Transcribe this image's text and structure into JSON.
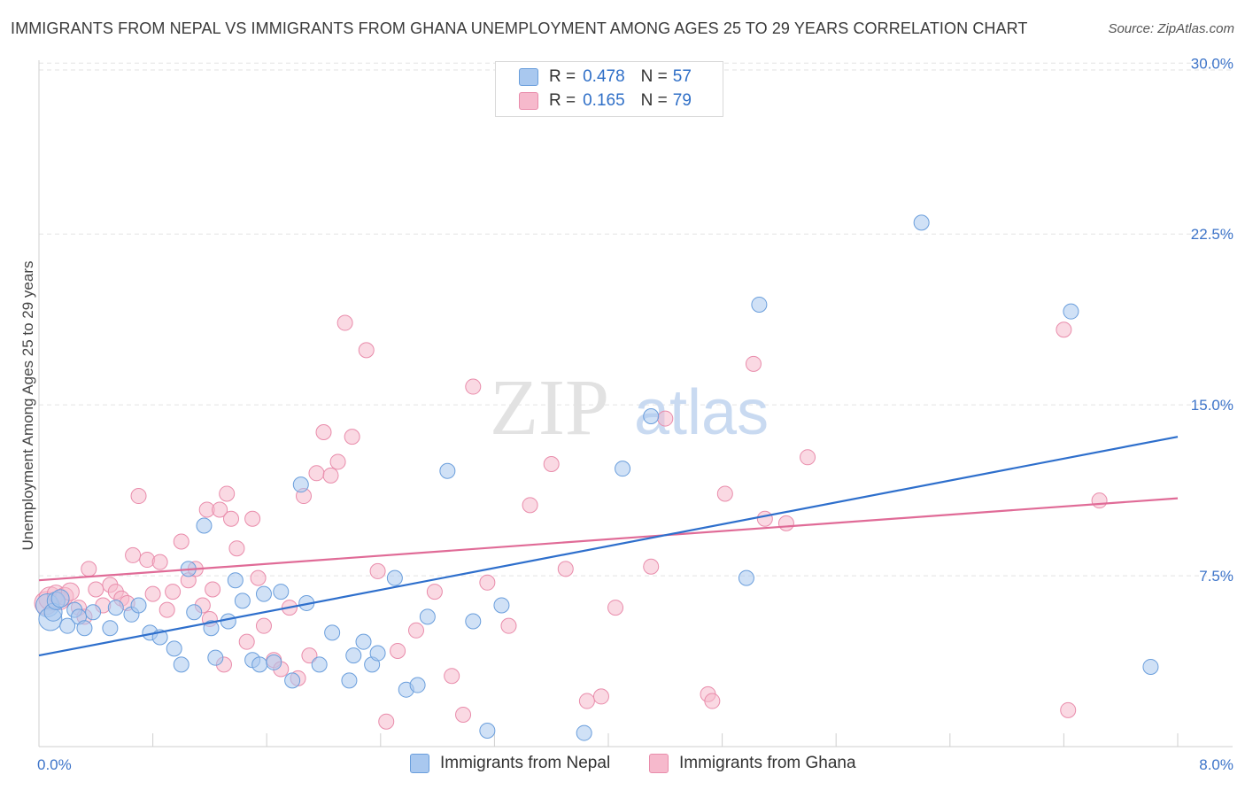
{
  "header": {
    "title": "IMMIGRANTS FROM NEPAL VS IMMIGRANTS FROM GHANA UNEMPLOYMENT AMONG AGES 25 TO 29 YEARS CORRELATION CHART",
    "source": "Source: ZipAtlas.com"
  },
  "watermark": {
    "zip": "ZIP",
    "atlas": "atlas"
  },
  "legend": {
    "rows": [
      {
        "r_label": "R =",
        "r_value": "0.478",
        "n_label": "N =",
        "n_value": "57"
      },
      {
        "r_label": "R =",
        "r_value": "0.165",
        "n_label": "N =",
        "n_value": "79"
      }
    ]
  },
  "colors": {
    "nepal_fill": "#a9c8ef",
    "nepal_stroke": "#6a9edc",
    "nepal_line": "#2e6fcc",
    "ghana_fill": "#f6b9cc",
    "ghana_stroke": "#e98cab",
    "ghana_line": "#e06b97",
    "tick_label": "#3d74c9",
    "grid": "#e3e3e3"
  },
  "chart_data": {
    "type": "scatter",
    "title": "IMMIGRANTS FROM NEPAL VS IMMIGRANTS FROM GHANA UNEMPLOYMENT AMONG AGES 25 TO 29 YEARS CORRELATION CHART",
    "xlabel": "",
    "ylabel": "Unemployment Among Ages 25 to 29 years",
    "xlim": [
      0,
      8
    ],
    "ylim": [
      0,
      30
    ],
    "x_tick_labels": [
      "0.0%",
      "8.0%"
    ],
    "y_ticks": [
      7.5,
      15.0,
      22.5,
      30.0
    ],
    "y_tick_labels": [
      "7.5%",
      "15.0%",
      "22.5%",
      "30.0%"
    ],
    "grid": "horizontal dashed",
    "legend_position": "top-center",
    "series": [
      {
        "name": "Immigrants from Nepal",
        "r": 0.478,
        "n": 57,
        "trend": [
          [
            0,
            4.0
          ],
          [
            8,
            13.6
          ]
        ],
        "points": [
          [
            0.06,
            6.2
          ],
          [
            0.08,
            5.6
          ],
          [
            0.1,
            5.9
          ],
          [
            0.12,
            6.4
          ],
          [
            0.15,
            6.5
          ],
          [
            0.2,
            5.3
          ],
          [
            0.25,
            6.0
          ],
          [
            0.28,
            5.7
          ],
          [
            0.32,
            5.2
          ],
          [
            0.38,
            5.9
          ],
          [
            0.5,
            5.2
          ],
          [
            0.54,
            6.1
          ],
          [
            0.65,
            5.8
          ],
          [
            0.7,
            6.2
          ],
          [
            0.78,
            5.0
          ],
          [
            0.85,
            4.8
          ],
          [
            0.95,
            4.3
          ],
          [
            1.0,
            3.6
          ],
          [
            1.05,
            7.8
          ],
          [
            1.09,
            5.9
          ],
          [
            1.16,
            9.7
          ],
          [
            1.21,
            5.2
          ],
          [
            1.24,
            3.9
          ],
          [
            1.33,
            5.5
          ],
          [
            1.38,
            7.3
          ],
          [
            1.43,
            6.4
          ],
          [
            1.5,
            3.8
          ],
          [
            1.55,
            3.6
          ],
          [
            1.58,
            6.7
          ],
          [
            1.65,
            3.7
          ],
          [
            1.7,
            6.8
          ],
          [
            1.78,
            2.9
          ],
          [
            1.84,
            11.5
          ],
          [
            1.88,
            6.3
          ],
          [
            1.97,
            3.6
          ],
          [
            2.06,
            5.0
          ],
          [
            2.18,
            2.9
          ],
          [
            2.21,
            4.0
          ],
          [
            2.28,
            4.6
          ],
          [
            2.34,
            3.6
          ],
          [
            2.38,
            4.1
          ],
          [
            2.5,
            7.4
          ],
          [
            2.58,
            2.5
          ],
          [
            2.66,
            2.7
          ],
          [
            2.73,
            5.7
          ],
          [
            2.87,
            12.1
          ],
          [
            3.05,
            5.5
          ],
          [
            3.15,
            0.7
          ],
          [
            3.25,
            6.2
          ],
          [
            3.83,
            0.6
          ],
          [
            4.1,
            12.2
          ],
          [
            4.3,
            14.5
          ],
          [
            4.97,
            7.4
          ],
          [
            5.06,
            19.4
          ],
          [
            6.2,
            23.0
          ],
          [
            7.25,
            19.1
          ],
          [
            7.81,
            3.5
          ]
        ]
      },
      {
        "name": "Immigrants from Ghana",
        "r": 0.165,
        "n": 79,
        "trend": [
          [
            0,
            7.3
          ],
          [
            8,
            10.9
          ]
        ],
        "points": [
          [
            0.05,
            6.3
          ],
          [
            0.08,
            6.5
          ],
          [
            0.12,
            6.7
          ],
          [
            0.15,
            6.4
          ],
          [
            0.18,
            6.6
          ],
          [
            0.22,
            6.8
          ],
          [
            0.28,
            6.1
          ],
          [
            0.32,
            5.7
          ],
          [
            0.35,
            7.8
          ],
          [
            0.4,
            6.9
          ],
          [
            0.45,
            6.2
          ],
          [
            0.5,
            7.1
          ],
          [
            0.54,
            6.8
          ],
          [
            0.58,
            6.5
          ],
          [
            0.62,
            6.3
          ],
          [
            0.66,
            8.4
          ],
          [
            0.7,
            11.0
          ],
          [
            0.76,
            8.2
          ],
          [
            0.8,
            6.7
          ],
          [
            0.85,
            8.1
          ],
          [
            0.9,
            6.0
          ],
          [
            0.94,
            6.8
          ],
          [
            1.0,
            9.0
          ],
          [
            1.05,
            7.3
          ],
          [
            1.1,
            7.8
          ],
          [
            1.15,
            6.2
          ],
          [
            1.18,
            10.4
          ],
          [
            1.2,
            5.6
          ],
          [
            1.22,
            6.9
          ],
          [
            1.27,
            10.4
          ],
          [
            1.3,
            3.6
          ],
          [
            1.32,
            11.1
          ],
          [
            1.35,
            10.0
          ],
          [
            1.39,
            8.7
          ],
          [
            1.46,
            4.6
          ],
          [
            1.5,
            10.0
          ],
          [
            1.54,
            7.4
          ],
          [
            1.58,
            5.3
          ],
          [
            1.65,
            3.8
          ],
          [
            1.7,
            3.4
          ],
          [
            1.76,
            6.1
          ],
          [
            1.82,
            3.0
          ],
          [
            1.86,
            11.0
          ],
          [
            1.9,
            4.0
          ],
          [
            1.95,
            12.0
          ],
          [
            2.0,
            13.8
          ],
          [
            2.05,
            11.9
          ],
          [
            2.1,
            12.5
          ],
          [
            2.15,
            18.6
          ],
          [
            2.2,
            13.6
          ],
          [
            2.3,
            17.4
          ],
          [
            2.38,
            7.7
          ],
          [
            2.44,
            1.1
          ],
          [
            2.52,
            4.2
          ],
          [
            2.65,
            5.1
          ],
          [
            2.78,
            6.8
          ],
          [
            2.9,
            3.1
          ],
          [
            2.98,
            1.4
          ],
          [
            3.05,
            15.8
          ],
          [
            3.15,
            7.2
          ],
          [
            3.3,
            5.3
          ],
          [
            3.45,
            10.6
          ],
          [
            3.6,
            12.4
          ],
          [
            3.7,
            7.8
          ],
          [
            3.85,
            2.0
          ],
          [
            3.95,
            2.2
          ],
          [
            4.05,
            6.1
          ],
          [
            4.3,
            7.9
          ],
          [
            4.4,
            14.4
          ],
          [
            4.7,
            2.3
          ],
          [
            4.73,
            2.0
          ],
          [
            4.82,
            11.1
          ],
          [
            5.02,
            16.8
          ],
          [
            5.1,
            10.0
          ],
          [
            5.25,
            9.8
          ],
          [
            5.4,
            12.7
          ],
          [
            7.2,
            18.3
          ],
          [
            7.23,
            1.6
          ],
          [
            7.45,
            10.8
          ]
        ]
      }
    ]
  }
}
